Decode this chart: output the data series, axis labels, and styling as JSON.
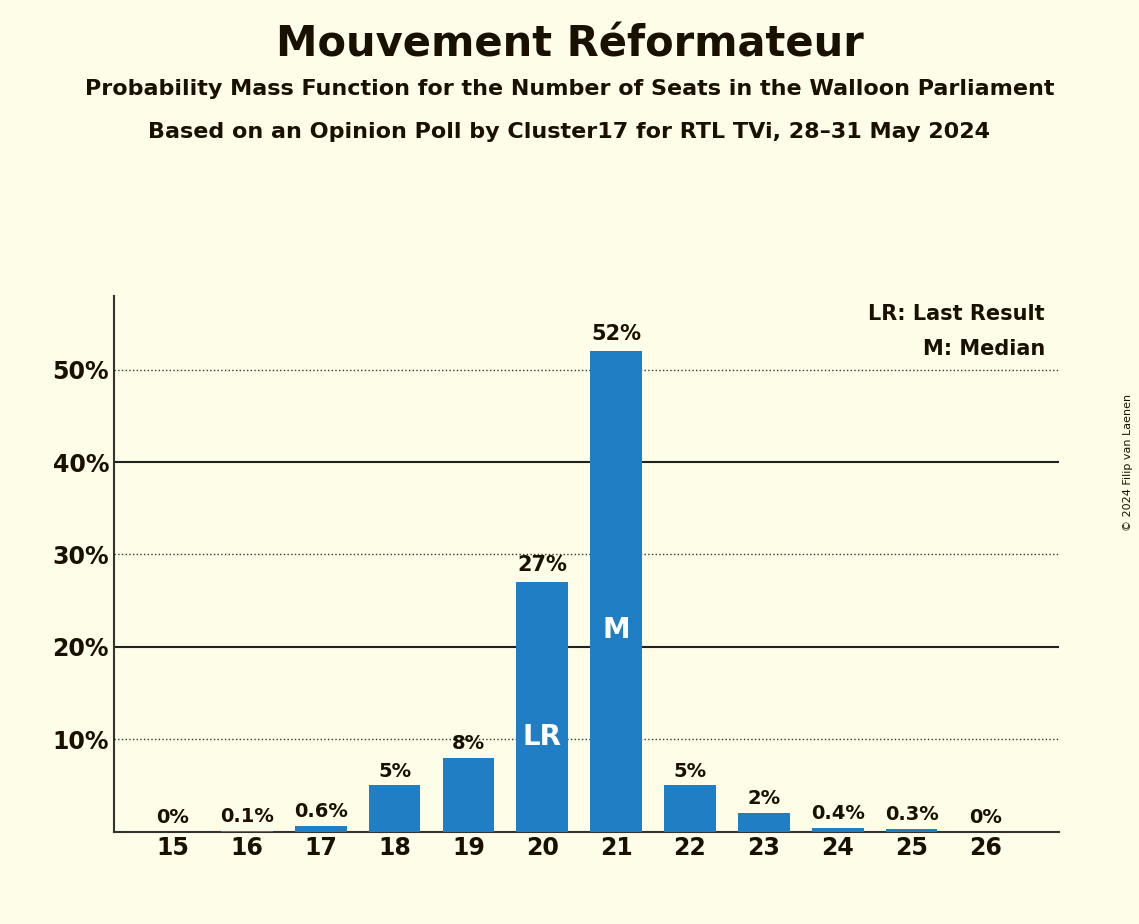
{
  "title": "Mouvement Réformateur",
  "subtitle1": "Probability Mass Function for the Number of Seats in the Walloon Parliament",
  "subtitle2": "Based on an Opinion Poll by Cluster17 for RTL TVi, 28–31 May 2024",
  "copyright": "© 2024 Filip van Laenen",
  "seats": [
    15,
    16,
    17,
    18,
    19,
    20,
    21,
    22,
    23,
    24,
    25,
    26
  ],
  "probabilities": [
    0.0,
    0.1,
    0.6,
    5.0,
    8.0,
    27.0,
    52.0,
    5.0,
    2.0,
    0.4,
    0.3,
    0.0
  ],
  "prob_labels": [
    "0%",
    "0.1%",
    "0.6%",
    "5%",
    "8%",
    "27%",
    "52%",
    "5%",
    "2%",
    "0.4%",
    "0.3%",
    "0%"
  ],
  "bar_color": "#1F7EC4",
  "background_color": "#FDFDE8",
  "last_result_seat": 20,
  "median_seat": 21,
  "text_dark": "#1a1000",
  "text_white": "#FFFFFF",
  "legend_lr": "LR: Last Result",
  "legend_m": "M: Median",
  "ylim": [
    0,
    58
  ],
  "yticks": [
    0,
    10,
    20,
    30,
    40,
    50
  ],
  "ytick_labels": [
    "",
    "10%",
    "20%",
    "30%",
    "40%",
    "50%"
  ],
  "dotted_levels": [
    10,
    30,
    50
  ],
  "solid_levels": [
    20,
    40
  ],
  "lr_label": "LR",
  "m_label": "M"
}
